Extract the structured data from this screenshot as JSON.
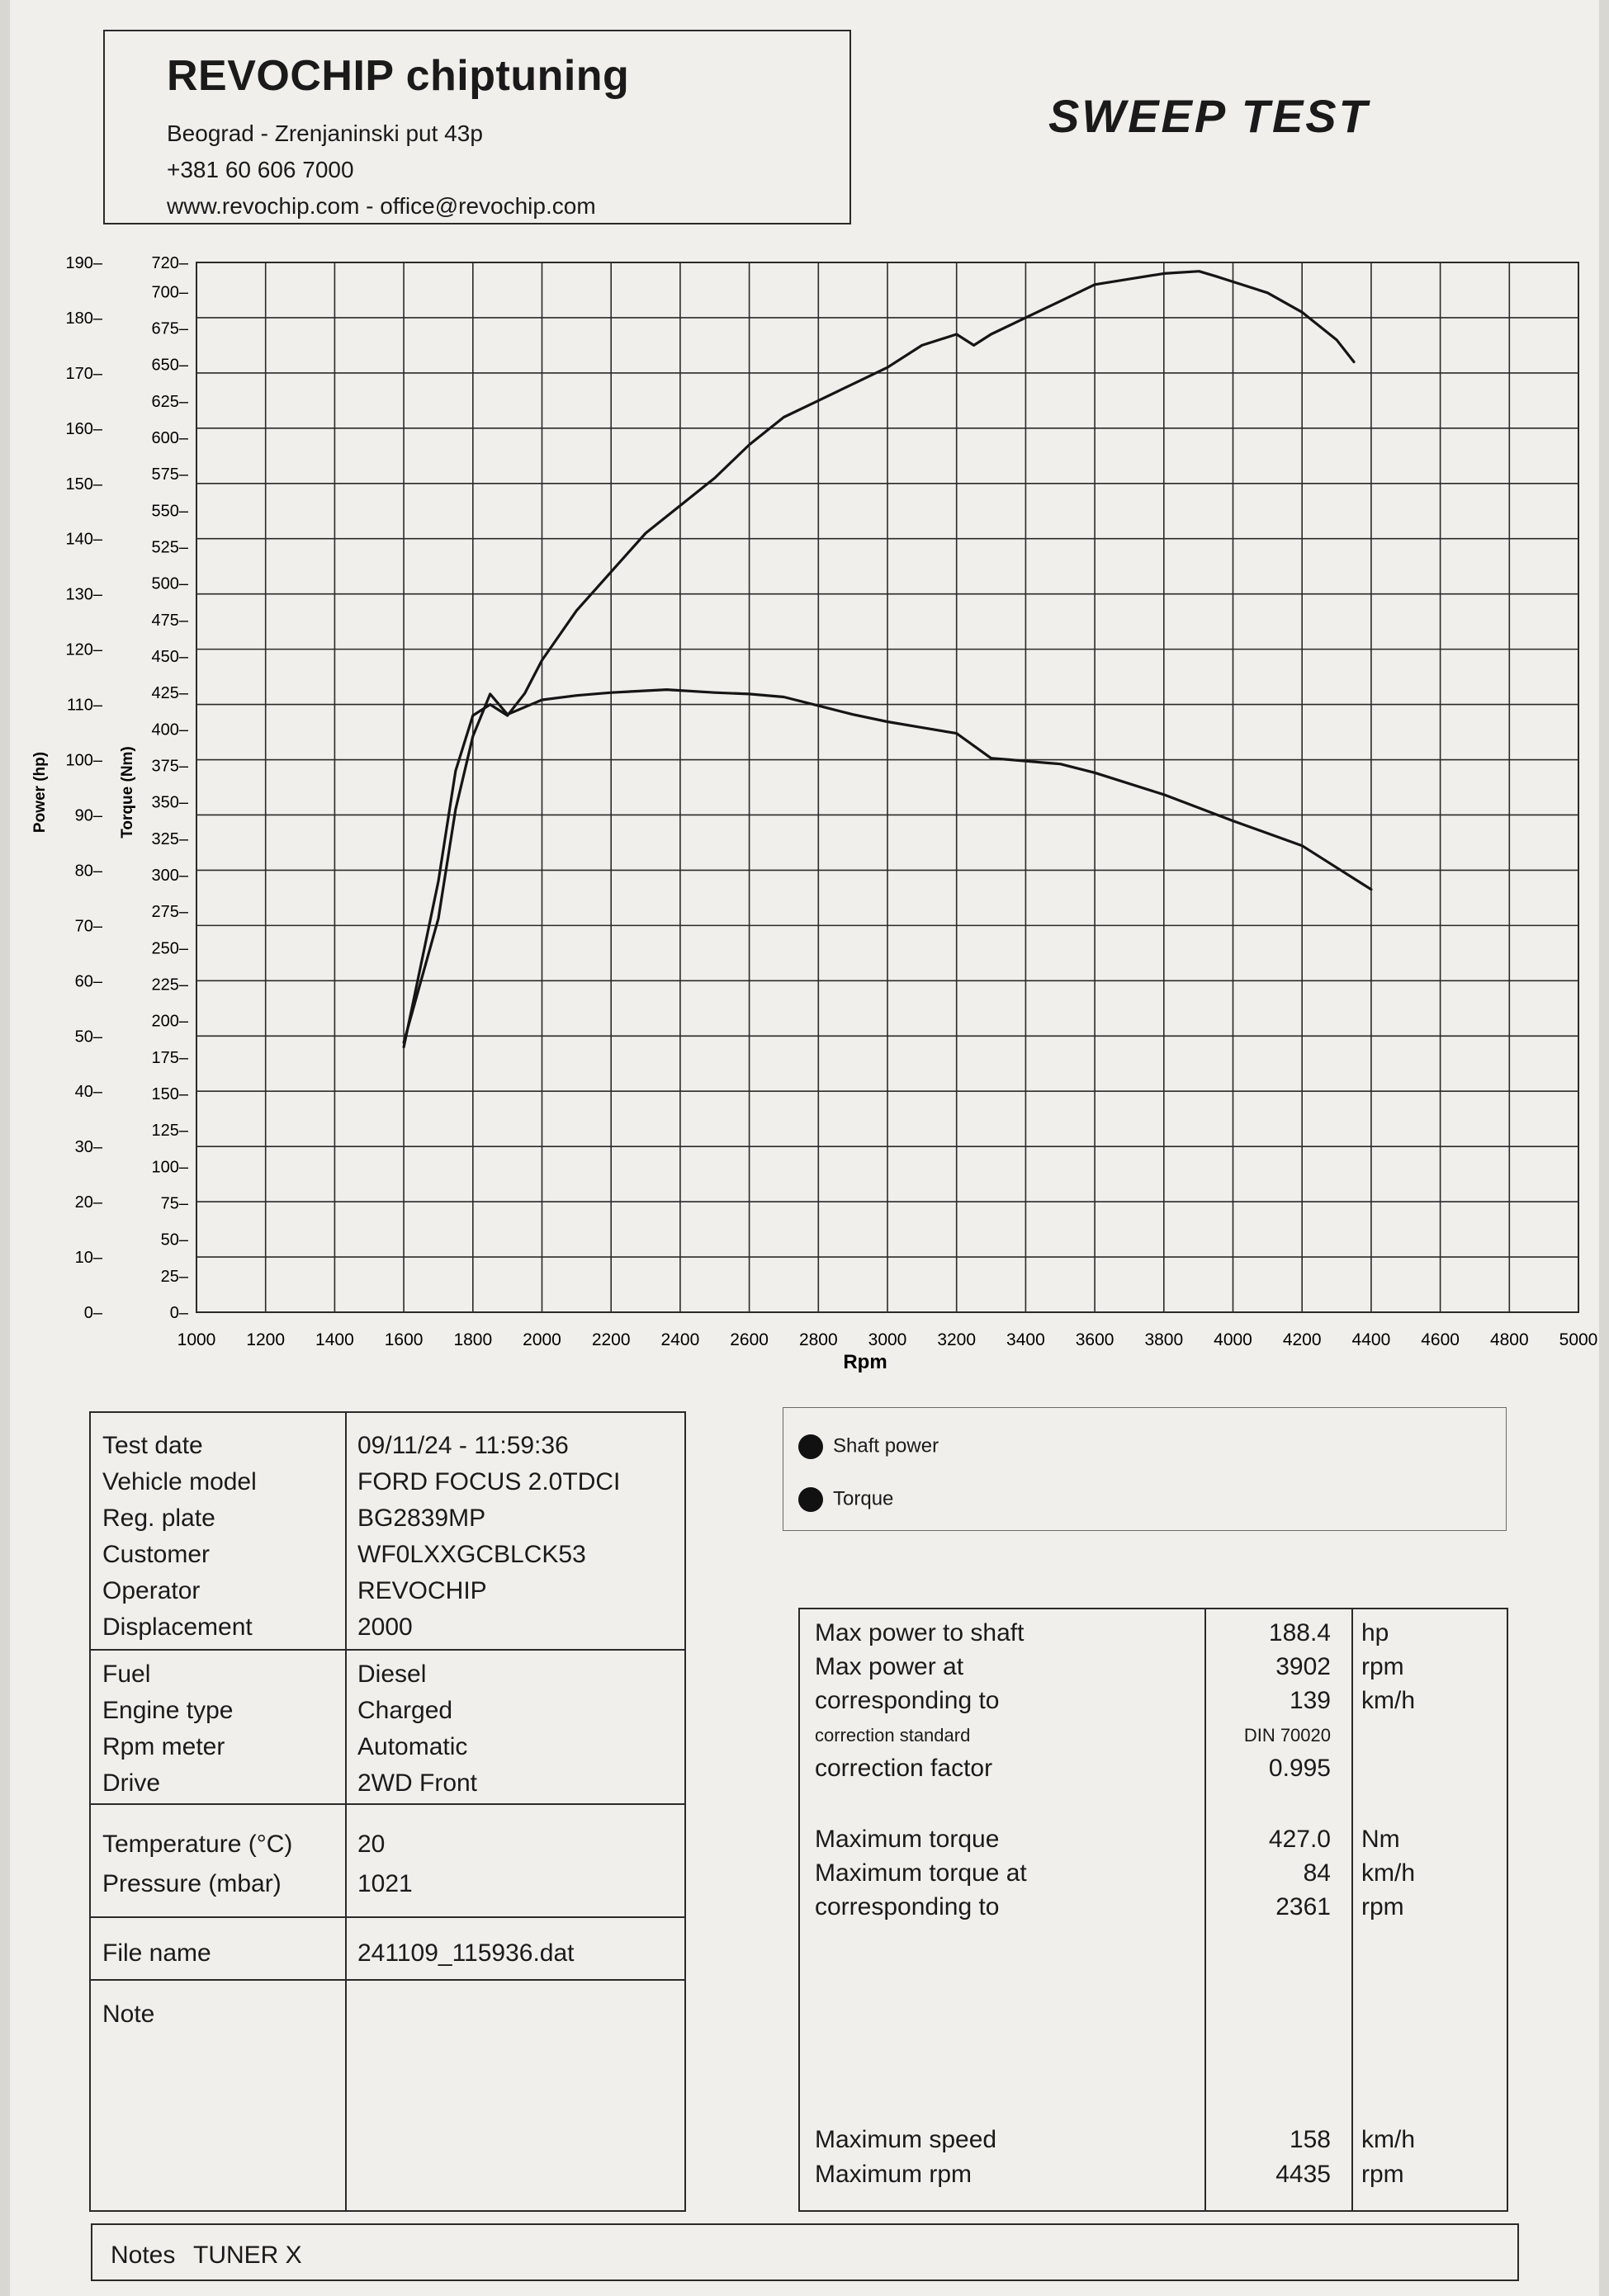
{
  "header": {
    "company": "REVOCHIP chiptuning",
    "address": "Beograd - Zrenjaninski put 43p",
    "phone": "+381 60 606 7000",
    "web": "www.revochip.com - office@revochip.com",
    "title": "SWEEP TEST"
  },
  "chart_data": {
    "type": "line",
    "xlabel": "Rpm",
    "ylabel_left": "Power (hp)",
    "ylabel_right": "Torque (Nm)",
    "xlim": [
      1000,
      5000
    ],
    "ylim_power": [
      0,
      190
    ],
    "ylim_torque": [
      0,
      720
    ],
    "x_ticks": [
      1000,
      1200,
      1400,
      1600,
      1800,
      2000,
      2200,
      2400,
      2600,
      2800,
      3000,
      3200,
      3400,
      3600,
      3800,
      4000,
      4200,
      4400,
      4600,
      4800,
      5000
    ],
    "power_ticks": [
      0,
      10,
      20,
      30,
      40,
      50,
      60,
      70,
      80,
      90,
      100,
      110,
      120,
      130,
      140,
      150,
      160,
      170,
      180,
      190
    ],
    "torque_ticks": [
      0,
      25,
      50,
      75,
      100,
      125,
      150,
      175,
      200,
      225,
      250,
      275,
      300,
      325,
      350,
      375,
      400,
      425,
      450,
      475,
      500,
      525,
      550,
      575,
      600,
      625,
      650,
      675,
      700,
      720
    ],
    "grid": true,
    "series": [
      {
        "name": "Shaft power",
        "axis": "power",
        "x": [
          1600,
          1700,
          1750,
          1800,
          1850,
          1900,
          1950,
          2000,
          2100,
          2200,
          2300,
          2400,
          2500,
          2600,
          2700,
          2800,
          2900,
          3000,
          3100,
          3200,
          3250,
          3300,
          3400,
          3500,
          3600,
          3700,
          3800,
          3902,
          3950,
          4000,
          4100,
          4200,
          4300,
          4350
        ],
        "values": [
          48,
          78,
          98,
          108,
          110,
          108,
          112,
          118,
          127,
          134,
          141,
          146,
          151,
          157,
          162,
          165,
          168,
          171,
          175,
          177,
          175,
          177,
          180,
          183,
          186,
          187,
          188,
          188.4,
          187.5,
          186.5,
          184.5,
          181,
          176,
          172
        ]
      },
      {
        "name": "Torque",
        "axis": "torque",
        "x": [
          1600,
          1700,
          1750,
          1800,
          1850,
          1900,
          1950,
          2000,
          2100,
          2200,
          2361,
          2500,
          2600,
          2700,
          2800,
          2900,
          3000,
          3100,
          3200,
          3300,
          3350,
          3400,
          3500,
          3600,
          3800,
          4000,
          4200,
          4300,
          4400
        ],
        "values": [
          185,
          270,
          345,
          395,
          424,
          410,
          415,
          420,
          423,
          425,
          427,
          425,
          424,
          422,
          416,
          410,
          405,
          401,
          397,
          380,
          379,
          378,
          376,
          370,
          355,
          337,
          320,
          305,
          290
        ]
      }
    ]
  },
  "legend": [
    {
      "label": "Shaft power"
    },
    {
      "label": "Torque"
    }
  ],
  "info": [
    {
      "label": "Test date",
      "value": "09/11/24 - 11:59:36"
    },
    {
      "label": "Vehicle model",
      "value": "FORD FOCUS 2.0TDCI"
    },
    {
      "label": "Reg. plate",
      "value": "BG2839MP"
    },
    {
      "label": "Customer",
      "value": "WF0LXXGCBLCK53"
    },
    {
      "label": "Operator",
      "value": "REVOCHIP"
    },
    {
      "label": "Displacement",
      "value": "2000"
    },
    {
      "label": "Fuel",
      "value": "Diesel"
    },
    {
      "label": "Engine type",
      "value": "Charged"
    },
    {
      "label": "Rpm meter",
      "value": "Automatic"
    },
    {
      "label": "Drive",
      "value": "2WD Front"
    },
    {
      "label": "Temperature (°C)",
      "value": "20"
    },
    {
      "label": "Pressure (mbar)",
      "value": "1021"
    },
    {
      "label": "File name",
      "value": "241109_115936.dat"
    },
    {
      "label": "Note",
      "value": ""
    }
  ],
  "results": [
    {
      "label": "Max power to shaft",
      "value": "188.4",
      "unit": "hp"
    },
    {
      "label": "Max power at",
      "value": "3902",
      "unit": "rpm"
    },
    {
      "label": "corresponding to",
      "value": "139",
      "unit": "km/h"
    },
    {
      "label": "correction standard",
      "value": "DIN 70020",
      "unit": ""
    },
    {
      "label": "correction factor",
      "value": "0.995",
      "unit": ""
    },
    {
      "label": "Maximum torque",
      "value": "427.0",
      "unit": "Nm"
    },
    {
      "label": "Maximum torque at",
      "value": "84",
      "unit": "km/h"
    },
    {
      "label": "corresponding to",
      "value": "2361",
      "unit": "rpm"
    },
    {
      "label": "Maximum speed",
      "value": "158",
      "unit": "km/h"
    },
    {
      "label": "Maximum rpm",
      "value": "4435",
      "unit": "rpm"
    }
  ],
  "notes": {
    "label": "Notes",
    "value": "TUNER X"
  }
}
